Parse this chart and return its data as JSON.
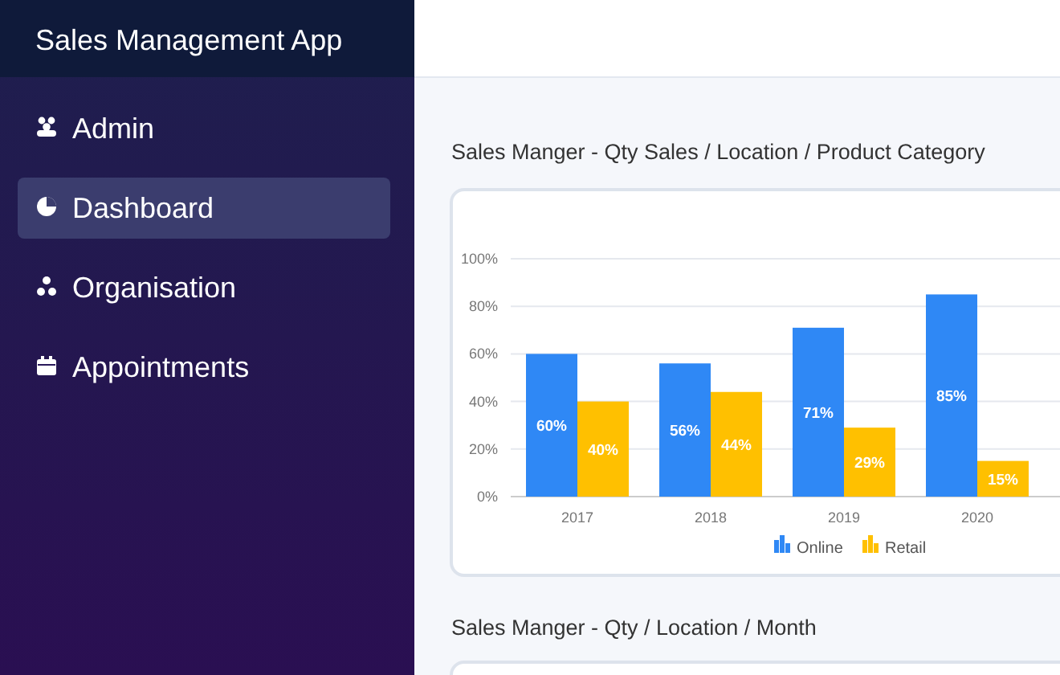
{
  "chart_data": [
    {
      "type": "other",
      "title": "Sales Management App",
      "annotations": [
        "Admin",
        "Dashboard",
        "Organisation",
        "Appointments",
        "Sales Manger - Qty / Location / Month"
      ]
    },
    {
      "type": "bar",
      "title": "Sales Manger - Qty Sales / Location / Product Category",
      "categories": [
        "2017",
        "2018",
        "2019",
        "2020"
      ],
      "series": [
        {
          "name": "Online",
          "color": "#2f88f5",
          "values": [
            60,
            56,
            71,
            85
          ],
          "value_labels": [
            "60%",
            "56%",
            "71%",
            "85%"
          ]
        },
        {
          "name": "Retail",
          "color": "#ffc000",
          "values": [
            40,
            44,
            29,
            15
          ],
          "value_labels": [
            "40%",
            "44%",
            "29%",
            "15%"
          ]
        }
      ],
      "ylim": [
        0,
        100
      ],
      "yticks": [
        {
          "value": 0,
          "label": "0%"
        },
        {
          "value": 20,
          "label": "20%"
        },
        {
          "value": 40,
          "label": "40%"
        },
        {
          "value": 60,
          "label": "60%"
        },
        {
          "value": 80,
          "label": "80%"
        },
        {
          "value": 100,
          "label": "100%"
        }
      ],
      "grid": "y",
      "legend": "bottom"
    }
  ]
}
